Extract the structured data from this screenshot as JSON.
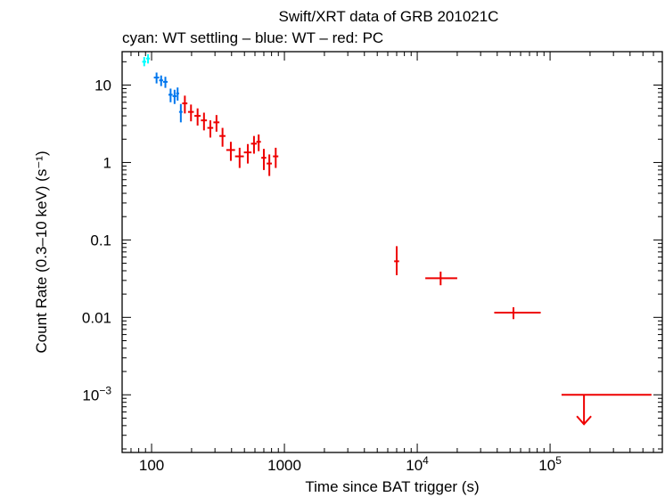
{
  "chart_data": {
    "type": "scatter",
    "title": "Swift/XRT data of GRB 201021C",
    "subtitle": "cyan: WT settling – blue: WT – red: PC",
    "xlabel": "Time since BAT trigger (s)",
    "ylabel": "Count Rate (0.3–10 keV) (s⁻¹)",
    "xscale": "log",
    "yscale": "log",
    "xlim": [
      60,
      700000
    ],
    "ylim": [
      0.00018,
      27
    ],
    "grid": false,
    "legend": "none",
    "x_ticks": [
      {
        "value": 100,
        "label": "100"
      },
      {
        "value": 1000,
        "label": "1000"
      },
      {
        "value": 10000,
        "base": "10",
        "exp": "4"
      },
      {
        "value": 100000,
        "base": "10",
        "exp": "5"
      }
    ],
    "y_ticks": [
      {
        "value": 10,
        "label": "10"
      },
      {
        "value": 1,
        "label": "1"
      },
      {
        "value": 0.1,
        "label": "0.1"
      },
      {
        "value": 0.01,
        "label": "0.01"
      },
      {
        "value": 0.001,
        "base": "10",
        "exp": "−3"
      }
    ],
    "series": [
      {
        "mode": "WT settling",
        "color": "#00ffff",
        "points": [
          {
            "x": 88,
            "xerr": [
              3,
              3
            ],
            "y": 20,
            "yerr": [
              2.5,
              3
            ]
          },
          {
            "x": 94,
            "xerr": [
              3,
              3
            ],
            "y": 22,
            "yerr": [
              3,
              3
            ]
          }
        ]
      },
      {
        "mode": "WT",
        "color": "#0077ee",
        "points": [
          {
            "x": 109,
            "xerr": [
              5,
              5
            ],
            "y": 12.5,
            "yerr": [
              2,
              2
            ]
          },
          {
            "x": 118,
            "xerr": [
              4,
              4
            ],
            "y": 11.5,
            "yerr": [
              1.8,
              1.8
            ]
          },
          {
            "x": 127,
            "xerr": [
              5,
              5
            ],
            "y": 11,
            "yerr": [
              1.8,
              1.8
            ]
          },
          {
            "x": 139,
            "xerr": [
              5,
              5
            ],
            "y": 7.5,
            "yerr": [
              1.5,
              1.5
            ]
          },
          {
            "x": 149,
            "xerr": [
              5,
              5
            ],
            "y": 7.2,
            "yerr": [
              1.5,
              1.5
            ]
          },
          {
            "x": 157,
            "xerr": [
              4,
              4
            ],
            "y": 7.8,
            "yerr": [
              1.5,
              1.5
            ]
          },
          {
            "x": 166,
            "xerr": [
              5,
              5
            ],
            "y": 4.5,
            "yerr": [
              1.2,
              1.2
            ]
          }
        ]
      },
      {
        "mode": "PC",
        "color": "#ee0000",
        "points": [
          {
            "x": 178,
            "xerr": [
              8,
              8
            ],
            "y": 5.8,
            "yerr": [
              1.5,
              1.5
            ]
          },
          {
            "x": 198,
            "xerr": [
              10,
              10
            ],
            "y": 4.5,
            "yerr": [
              1.1,
              1.1
            ]
          },
          {
            "x": 222,
            "xerr": [
              12,
              12
            ],
            "y": 4.0,
            "yerr": [
              1.0,
              1.0
            ]
          },
          {
            "x": 248,
            "xerr": [
              13,
              13
            ],
            "y": 3.5,
            "yerr": [
              0.9,
              0.9
            ]
          },
          {
            "x": 277,
            "xerr": [
              14,
              14
            ],
            "y": 2.8,
            "yerr": [
              0.7,
              0.7
            ]
          },
          {
            "x": 308,
            "xerr": [
              16,
              16
            ],
            "y": 3.3,
            "yerr": [
              0.8,
              0.8
            ]
          },
          {
            "x": 342,
            "xerr": [
              18,
              18
            ],
            "y": 2.2,
            "yerr": [
              0.6,
              0.6
            ]
          },
          {
            "x": 395,
            "xerr": [
              30,
              30
            ],
            "y": 1.45,
            "yerr": [
              0.4,
              0.4
            ]
          },
          {
            "x": 460,
            "xerr": [
              35,
              35
            ],
            "y": 1.2,
            "yerr": [
              0.35,
              0.35
            ]
          },
          {
            "x": 530,
            "xerr": [
              35,
              35
            ],
            "y": 1.35,
            "yerr": [
              0.38,
              0.38
            ]
          },
          {
            "x": 590,
            "xerr": [
              30,
              30
            ],
            "y": 1.75,
            "yerr": [
              0.45,
              0.45
            ]
          },
          {
            "x": 640,
            "xerr": [
              25,
              25
            ],
            "y": 1.85,
            "yerr": [
              0.45,
              0.45
            ]
          },
          {
            "x": 700,
            "xerr": [
              30,
              30
            ],
            "y": 1.15,
            "yerr": [
              0.35,
              0.35
            ]
          },
          {
            "x": 770,
            "xerr": [
              35,
              35
            ],
            "y": 0.97,
            "yerr": [
              0.3,
              0.3
            ]
          },
          {
            "x": 860,
            "xerr": [
              40,
              40
            ],
            "y": 1.2,
            "yerr": [
              0.35,
              0.35
            ]
          },
          {
            "x": 7000,
            "xerr": [
              300,
              300
            ],
            "y": 0.053,
            "yerr": [
              0.018,
              0.03
            ]
          },
          {
            "x": 15000,
            "xerr": [
              3500,
              5000
            ],
            "y": 0.032,
            "yerr": [
              0.006,
              0.007
            ]
          },
          {
            "x": 53000,
            "xerr": [
              15000,
              32000
            ],
            "y": 0.0115,
            "yerr": [
              0.002,
              0.002
            ]
          }
        ],
        "upper_limits": [
          {
            "x": 180000,
            "xerr": [
              58000,
              400000
            ],
            "y": 0.001
          }
        ]
      }
    ]
  }
}
